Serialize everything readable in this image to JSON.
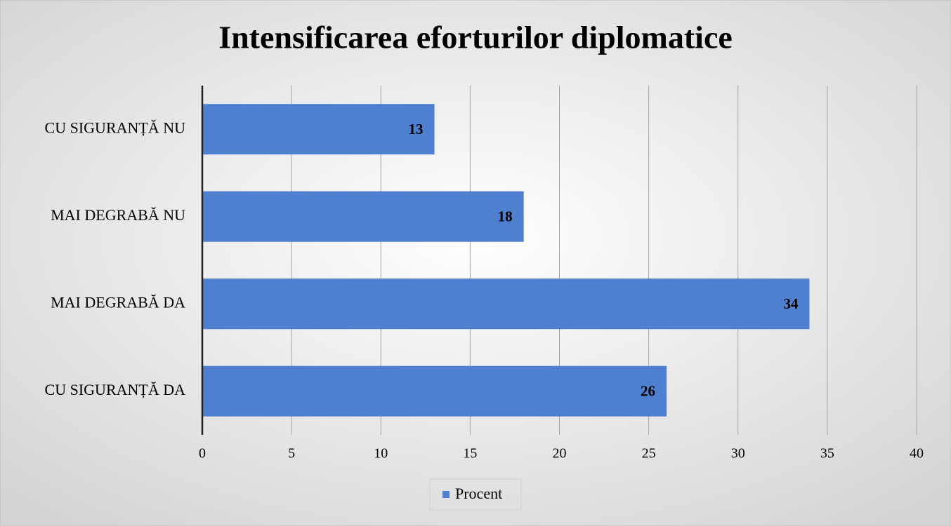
{
  "chart_data": {
    "type": "bar",
    "orientation": "horizontal",
    "title": "Intensificarea eforturilor diplomatice",
    "categories": [
      "CU SIGURANȚĂ NU",
      "MAI DEGRABĂ NU",
      "MAI DEGRABĂ DA",
      "CU SIGURANȚĂ DA"
    ],
    "series": [
      {
        "name": "Procent",
        "color": "#4f7fcf",
        "values": [
          13,
          18,
          34,
          26
        ]
      }
    ],
    "xlim": [
      0,
      40
    ],
    "xticks": [
      0,
      5,
      10,
      15,
      20,
      25,
      30,
      35,
      40
    ],
    "grid": true,
    "legend": "bottom"
  }
}
